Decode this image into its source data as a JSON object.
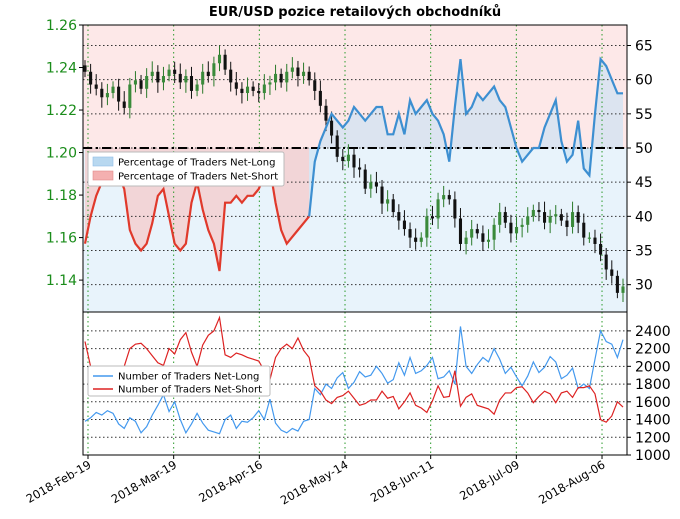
{
  "chart_data": {
    "title": "EUR/USD pozice retailových obchodníků",
    "x_ticks": [
      "2018-Feb-19",
      "2018-Mar-19",
      "2018-Apr-16",
      "2018-May-14",
      "2018-Jun-11",
      "2018-Jul-09",
      "2018-Aug-06"
    ],
    "top_panel": {
      "type": "candlestick_with_line",
      "price_axis": {
        "side": "left",
        "ylim": [
          1.125,
          1.26
        ],
        "ticks": [
          "1.26",
          "1.24",
          "1.22",
          "1.20",
          "1.18",
          "1.16",
          "1.14"
        ]
      },
      "percent_axis": {
        "side": "right",
        "ylim": [
          26,
          68
        ],
        "ticks": [
          "65",
          "60",
          "55",
          "50",
          "45",
          "40",
          "35",
          "30"
        ]
      },
      "reference_line": 50,
      "legend": [
        {
          "label": "Percentage of Traders Net-Long",
          "color": "#b8d8f0"
        },
        {
          "label": "Percentage of Traders Net-Short",
          "color": "#f4b0b0"
        }
      ],
      "price_close": [
        1.238,
        1.232,
        1.23,
        1.226,
        1.228,
        1.231,
        1.224,
        1.221,
        1.232,
        1.234,
        1.23,
        1.236,
        1.238,
        1.233,
        1.236,
        1.239,
        1.237,
        1.233,
        1.236,
        1.229,
        1.232,
        1.238,
        1.236,
        1.242,
        1.246,
        1.239,
        1.233,
        1.23,
        1.228,
        1.231,
        1.229,
        1.228,
        1.232,
        1.233,
        1.237,
        1.233,
        1.238,
        1.24,
        1.236,
        1.238,
        1.234,
        1.229,
        1.222,
        1.215,
        1.208,
        1.198,
        1.196,
        1.199,
        1.193,
        1.192,
        1.183,
        1.186,
        1.184,
        1.176,
        1.178,
        1.172,
        1.168,
        1.164,
        1.16,
        1.158,
        1.16,
        1.17,
        1.169,
        1.178,
        1.18,
        1.178,
        1.169,
        1.157,
        1.16,
        1.164,
        1.162,
        1.158,
        1.159,
        1.166,
        1.172,
        1.167,
        1.162,
        1.165,
        1.166,
        1.17,
        1.173,
        1.172,
        1.167,
        1.17,
        1.171,
        1.168,
        1.165,
        1.172,
        1.167,
        1.16,
        1.16,
        1.157,
        1.152,
        1.145,
        1.142,
        1.134,
        1.137
      ],
      "pct_long": [
        36,
        40,
        43,
        45,
        47,
        48,
        46,
        44,
        38,
        36,
        35,
        36,
        39,
        43,
        44,
        40,
        36,
        35,
        36,
        42,
        45,
        41,
        38,
        36,
        32,
        42,
        42,
        43,
        42,
        43,
        43,
        44,
        46,
        47,
        42,
        38,
        36,
        37,
        38,
        39,
        40,
        48,
        51,
        53,
        55,
        54,
        53,
        54,
        56,
        55,
        54,
        55,
        56,
        56,
        52,
        52,
        55,
        52,
        57,
        55,
        56,
        57,
        55,
        54,
        52,
        48,
        56,
        63,
        55,
        56,
        58,
        57,
        58,
        59,
        57,
        56,
        53,
        50,
        48,
        49,
        50,
        50,
        53,
        55,
        57,
        51,
        48,
        49,
        54,
        47,
        46,
        55,
        63,
        62,
        60,
        58,
        58
      ],
      "pct_long_split": 41,
      "pct_long_split2": 64
    },
    "bottom_panel": {
      "type": "line",
      "ylim": [
        1000,
        2500
      ],
      "ticks": [
        "2400",
        "2200",
        "2000",
        "1800",
        "1600",
        "1400",
        "1200",
        "1000"
      ],
      "legend": [
        {
          "label": "Number of Traders Net-Long",
          "color": "#4499ee"
        },
        {
          "label": "Number of Traders Net-Short",
          "color": "#dd2222"
        }
      ],
      "net_long": [
        1380,
        1420,
        1480,
        1450,
        1500,
        1470,
        1350,
        1300,
        1420,
        1380,
        1250,
        1320,
        1450,
        1560,
        1680,
        1490,
        1600,
        1400,
        1250,
        1350,
        1470,
        1360,
        1280,
        1260,
        1240,
        1400,
        1450,
        1300,
        1380,
        1370,
        1420,
        1500,
        1400,
        1630,
        1360,
        1280,
        1250,
        1300,
        1270,
        1380,
        1400,
        1750,
        1680,
        1800,
        1750,
        1870,
        1930,
        1750,
        1820,
        1940,
        1880,
        1900,
        2000,
        1920,
        1810,
        1850,
        2040,
        1900,
        2100,
        1920,
        1950,
        2010,
        2100,
        1860,
        1880,
        1950,
        1800,
        2450,
        2000,
        1920,
        2020,
        2100,
        2050,
        2200,
        2080,
        1920,
        1990,
        1880,
        1780,
        1890,
        2050,
        1930,
        1990,
        2110,
        2050,
        1860,
        1900,
        1980,
        1750,
        1800,
        1750,
        2080,
        2400,
        2280,
        2250,
        2100,
        2300
      ],
      "net_short": [
        2280,
        2000,
        2000,
        1960,
        1930,
        1900,
        1950,
        2000,
        2200,
        2250,
        2260,
        2200,
        2120,
        2040,
        2010,
        2200,
        2140,
        2300,
        2380,
        2160,
        2000,
        2240,
        2350,
        2400,
        2550,
        2130,
        2100,
        2150,
        2130,
        2100,
        2080,
        2060,
        1950,
        1850,
        2100,
        2200,
        2250,
        2200,
        2320,
        2180,
        2100,
        1780,
        1720,
        1620,
        1580,
        1650,
        1670,
        1720,
        1640,
        1560,
        1580,
        1620,
        1620,
        1720,
        1640,
        1660,
        1520,
        1600,
        1700,
        1560,
        1530,
        1480,
        1610,
        1780,
        1650,
        1660,
        1950,
        1550,
        1650,
        1690,
        1560,
        1540,
        1520,
        1460,
        1620,
        1700,
        1700,
        1760,
        1770,
        1700,
        1590,
        1660,
        1720,
        1690,
        1590,
        1700,
        1720,
        1650,
        1760,
        1760,
        1780,
        1690,
        1400,
        1370,
        1440,
        1600,
        1540
      ]
    }
  }
}
